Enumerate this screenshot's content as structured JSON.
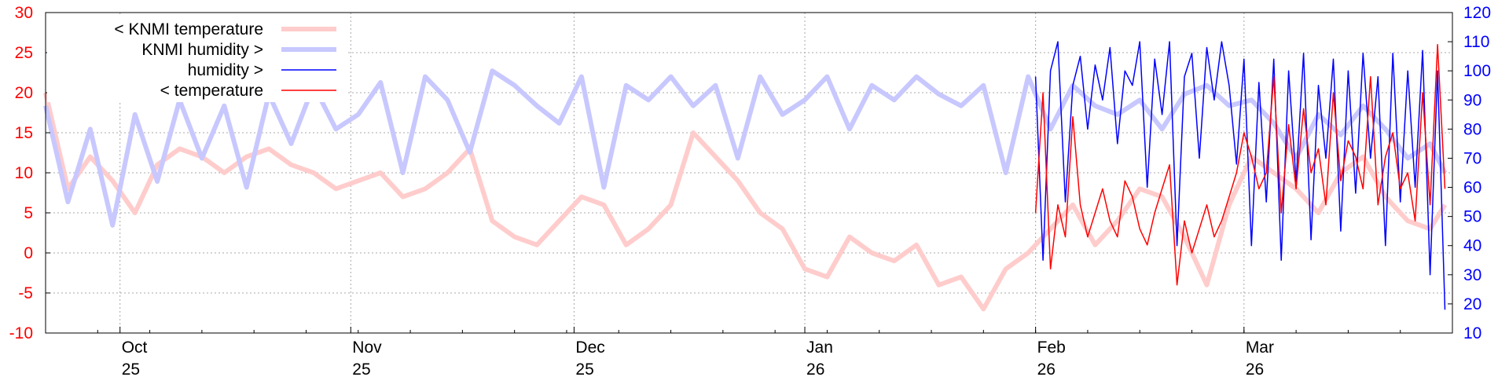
{
  "chart_data": {
    "type": "line",
    "y_left": {
      "range": [
        -10,
        30
      ],
      "ticks": [
        -10,
        -5,
        0,
        5,
        10,
        15,
        20,
        25,
        30
      ],
      "color": "#ff0000"
    },
    "y_right": {
      "range": [
        10,
        120
      ],
      "ticks": [
        10,
        20,
        30,
        40,
        50,
        60,
        70,
        80,
        90,
        100,
        110,
        120
      ],
      "color": "#0000ff"
    },
    "x_axis": {
      "range": [
        "2025-09-21",
        "2026-03-29"
      ],
      "labels": [
        {
          "date": "2025-10-01",
          "month": "Oct",
          "year": "25"
        },
        {
          "date": "2025-11-01",
          "month": "Nov",
          "year": "25"
        },
        {
          "date": "2025-12-01",
          "month": "Dec",
          "year": "25"
        },
        {
          "date": "2026-01-01",
          "month": "Jan",
          "year": "26"
        },
        {
          "date": "2026-02-01",
          "month": "Feb",
          "year": "26"
        },
        {
          "date": "2026-03-01",
          "month": "Mar",
          "year": "26"
        }
      ]
    },
    "grid": true,
    "legend_position": "top-left",
    "legend": [
      {
        "label": "< KNMI temperature",
        "color": "#ffcccc",
        "width": 6
      },
      {
        "label": "KNMI humidity >",
        "color": "#c8c8ff",
        "width": 6
      },
      {
        "label": "humidity >",
        "color": "#0000ff",
        "width": 1.5
      },
      {
        "label": "< temperature",
        "color": "#ff0000",
        "width": 1.5
      }
    ],
    "series": [
      {
        "name": "< KNMI temperature",
        "axis": "left",
        "color": "#ffcccc",
        "width": 6,
        "x": [
          "2025-09-21",
          "2025-09-24",
          "2025-09-27",
          "2025-09-30",
          "2025-10-03",
          "2025-10-06",
          "2025-10-09",
          "2025-10-12",
          "2025-10-15",
          "2025-10-18",
          "2025-10-21",
          "2025-10-24",
          "2025-10-27",
          "2025-10-30",
          "2025-11-02",
          "2025-11-05",
          "2025-11-08",
          "2025-11-11",
          "2025-11-14",
          "2025-11-17",
          "2025-11-20",
          "2025-11-23",
          "2025-11-26",
          "2025-11-29",
          "2025-12-02",
          "2025-12-05",
          "2025-12-08",
          "2025-12-11",
          "2025-12-14",
          "2025-12-17",
          "2025-12-20",
          "2025-12-23",
          "2025-12-26",
          "2025-12-29",
          "2026-01-01",
          "2026-01-04",
          "2026-01-07",
          "2026-01-10",
          "2026-01-13",
          "2026-01-16",
          "2026-01-19",
          "2026-01-22",
          "2026-01-25",
          "2026-01-28",
          "2026-01-31",
          "2026-02-03",
          "2026-02-06",
          "2026-02-09",
          "2026-02-12",
          "2026-02-15",
          "2026-02-18",
          "2026-02-21",
          "2026-02-24",
          "2026-02-27",
          "2026-03-02",
          "2026-03-05",
          "2026-03-08",
          "2026-03-11",
          "2026-03-14",
          "2026-03-17",
          "2026-03-20",
          "2026-03-23",
          "2026-03-26",
          "2026-03-28"
        ],
        "values": [
          20,
          8,
          12,
          9,
          5,
          11,
          13,
          12,
          10,
          12,
          13,
          11,
          10,
          8,
          9,
          10,
          7,
          8,
          10,
          13,
          4,
          2,
          1,
          4,
          7,
          6,
          1,
          3,
          6,
          15,
          12,
          9,
          5,
          3,
          -2,
          -3,
          2,
          0,
          -1,
          1,
          -4,
          -3,
          -7,
          -2,
          0,
          3,
          6,
          1,
          4,
          8,
          7,
          2,
          -4,
          6,
          12,
          10,
          8,
          5,
          10,
          12,
          7,
          4,
          3,
          6
        ]
      },
      {
        "name": "KNMI humidity >",
        "axis": "right",
        "color": "#c8c8ff",
        "width": 6,
        "x": [
          "2025-09-21",
          "2025-09-24",
          "2025-09-27",
          "2025-09-30",
          "2025-10-03",
          "2025-10-06",
          "2025-10-09",
          "2025-10-12",
          "2025-10-15",
          "2025-10-18",
          "2025-10-21",
          "2025-10-24",
          "2025-10-27",
          "2025-10-30",
          "2025-11-02",
          "2025-11-05",
          "2025-11-08",
          "2025-11-11",
          "2025-11-14",
          "2025-11-17",
          "2025-11-20",
          "2025-11-23",
          "2025-11-26",
          "2025-11-29",
          "2025-12-02",
          "2025-12-05",
          "2025-12-08",
          "2025-12-11",
          "2025-12-14",
          "2025-12-17",
          "2025-12-20",
          "2025-12-23",
          "2025-12-26",
          "2025-12-29",
          "2026-01-01",
          "2026-01-04",
          "2026-01-07",
          "2026-01-10",
          "2026-01-13",
          "2026-01-16",
          "2026-01-19",
          "2026-01-22",
          "2026-01-25",
          "2026-01-28",
          "2026-01-31",
          "2026-02-03",
          "2026-02-06",
          "2026-02-09",
          "2026-02-12",
          "2026-02-15",
          "2026-02-18",
          "2026-02-21",
          "2026-02-24",
          "2026-02-27",
          "2026-03-02",
          "2026-03-05",
          "2026-03-08",
          "2026-03-11",
          "2026-03-14",
          "2026-03-17",
          "2026-03-20",
          "2026-03-23",
          "2026-03-26",
          "2026-03-28"
        ],
        "values": [
          88,
          55,
          80,
          47,
          85,
          62,
          90,
          70,
          88,
          60,
          92,
          75,
          95,
          80,
          85,
          96,
          65,
          98,
          90,
          72,
          100,
          95,
          88,
          82,
          98,
          60,
          95,
          90,
          98,
          88,
          95,
          70,
          98,
          85,
          90,
          98,
          80,
          95,
          90,
          98,
          92,
          88,
          95,
          65,
          98,
          80,
          95,
          88,
          85,
          90,
          80,
          92,
          95,
          88,
          90,
          82,
          70,
          85,
          78,
          88,
          80,
          70,
          75,
          65
        ]
      },
      {
        "name": "humidity >",
        "axis": "right",
        "color": "#0000ff",
        "width": 1.5,
        "x": [
          "2026-02-01",
          "2026-02-02",
          "2026-02-03",
          "2026-02-04",
          "2026-02-05",
          "2026-02-06",
          "2026-02-07",
          "2026-02-08",
          "2026-02-09",
          "2026-02-10",
          "2026-02-11",
          "2026-02-12",
          "2026-02-13",
          "2026-02-14",
          "2026-02-15",
          "2026-02-16",
          "2026-02-17",
          "2026-02-18",
          "2026-02-19",
          "2026-02-20",
          "2026-02-21",
          "2026-02-22",
          "2026-02-23",
          "2026-02-24",
          "2026-02-25",
          "2026-02-26",
          "2026-02-27",
          "2026-02-28",
          "2026-03-01",
          "2026-03-02",
          "2026-03-03",
          "2026-03-04",
          "2026-03-05",
          "2026-03-06",
          "2026-03-07",
          "2026-03-08",
          "2026-03-09",
          "2026-03-10",
          "2026-03-11",
          "2026-03-12",
          "2026-03-13",
          "2026-03-14",
          "2026-03-15",
          "2026-03-16",
          "2026-03-17",
          "2026-03-18",
          "2026-03-19",
          "2026-03-20",
          "2026-03-21",
          "2026-03-22",
          "2026-03-23",
          "2026-03-24",
          "2026-03-25",
          "2026-03-26",
          "2026-03-27",
          "2026-03-28"
        ],
        "values": [
          98,
          35,
          100,
          110,
          55,
          95,
          105,
          80,
          102,
          90,
          108,
          75,
          100,
          95,
          110,
          60,
          104,
          85,
          110,
          40,
          98,
          106,
          70,
          108,
          90,
          110,
          95,
          68,
          104,
          40,
          96,
          55,
          104,
          35,
          100,
          62,
          106,
          42,
          95,
          70,
          104,
          45,
          100,
          58,
          106,
          70,
          98,
          40,
          106,
          55,
          100,
          60,
          107,
          30,
          100,
          18
        ]
      },
      {
        "name": "< temperature",
        "axis": "left",
        "color": "#ff0000",
        "width": 1.5,
        "x": [
          "2026-02-01",
          "2026-02-02",
          "2026-02-03",
          "2026-02-04",
          "2026-02-05",
          "2026-02-06",
          "2026-02-07",
          "2026-02-08",
          "2026-02-09",
          "2026-02-10",
          "2026-02-11",
          "2026-02-12",
          "2026-02-13",
          "2026-02-14",
          "2026-02-15",
          "2026-02-16",
          "2026-02-17",
          "2026-02-18",
          "2026-02-19",
          "2026-02-20",
          "2026-02-21",
          "2026-02-22",
          "2026-02-23",
          "2026-02-24",
          "2026-02-25",
          "2026-02-26",
          "2026-02-27",
          "2026-02-28",
          "2026-03-01",
          "2026-03-02",
          "2026-03-03",
          "2026-03-04",
          "2026-03-05",
          "2026-03-06",
          "2026-03-07",
          "2026-03-08",
          "2026-03-09",
          "2026-03-10",
          "2026-03-11",
          "2026-03-12",
          "2026-03-13",
          "2026-03-14",
          "2026-03-15",
          "2026-03-16",
          "2026-03-17",
          "2026-03-18",
          "2026-03-19",
          "2026-03-20",
          "2026-03-21",
          "2026-03-22",
          "2026-03-23",
          "2026-03-24",
          "2026-03-25",
          "2026-03-26",
          "2026-03-27",
          "2026-03-28"
        ],
        "values": [
          5,
          20,
          -2,
          6,
          2,
          17,
          6,
          2,
          5,
          8,
          4,
          2,
          9,
          7,
          3,
          1,
          5,
          8,
          11,
          -4,
          4,
          0,
          3,
          6,
          2,
          4,
          7,
          10,
          15,
          12,
          8,
          10,
          22,
          5,
          16,
          8,
          18,
          10,
          13,
          6,
          20,
          9,
          14,
          12,
          8,
          22,
          6,
          12,
          15,
          8,
          10,
          4,
          20,
          6,
          26,
          8
        ]
      }
    ]
  }
}
